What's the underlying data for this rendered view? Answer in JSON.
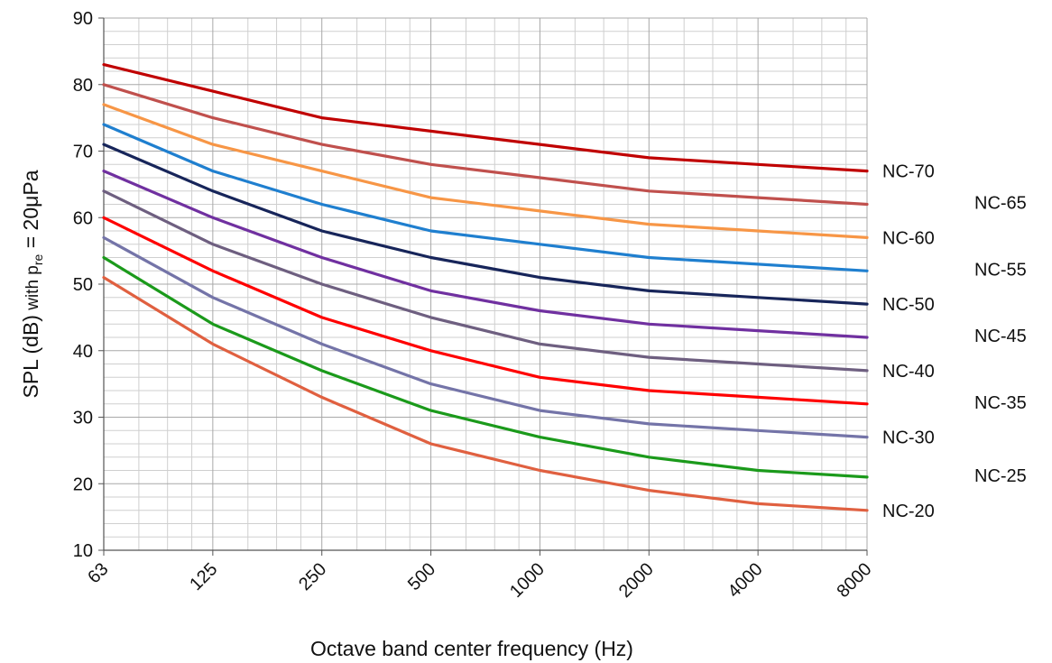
{
  "chart_data": {
    "type": "line",
    "title": "",
    "xlabel": "Octave band center frequency (Hz)",
    "ylabel": {
      "prefix": "SPL (dB)",
      "with": " with p",
      "sub": "re",
      "suffix": " = 20μPa"
    },
    "x_scale": "log2",
    "categories": [
      "63",
      "125",
      "250",
      "500",
      "1000",
      "2000",
      "4000",
      "8000"
    ],
    "ylim": [
      10,
      90
    ],
    "y_ticks": [
      10,
      20,
      30,
      40,
      50,
      60,
      70,
      80,
      90
    ],
    "grid": true,
    "series": [
      {
        "name": "NC-70",
        "color": "#c00000",
        "values": [
          83,
          79,
          75,
          73,
          71,
          69,
          68,
          67
        ]
      },
      {
        "name": "NC-65",
        "color": "#c0504d",
        "values": [
          80,
          75,
          71,
          68,
          66,
          64,
          63,
          62
        ]
      },
      {
        "name": "NC-60",
        "color": "#f79646",
        "values": [
          77,
          71,
          67,
          63,
          61,
          59,
          58,
          57
        ]
      },
      {
        "name": "NC-55",
        "color": "#1f7fcf",
        "values": [
          74,
          67,
          62,
          58,
          56,
          54,
          53,
          52
        ]
      },
      {
        "name": "NC-50",
        "color": "#17255a",
        "values": [
          71,
          64,
          58,
          54,
          51,
          49,
          48,
          47
        ]
      },
      {
        "name": "NC-45",
        "color": "#7030a0",
        "values": [
          67,
          60,
          54,
          49,
          46,
          44,
          43,
          42
        ]
      },
      {
        "name": "NC-40",
        "color": "#6e5f80",
        "values": [
          64,
          56,
          50,
          45,
          41,
          39,
          38,
          37
        ]
      },
      {
        "name": "NC-35",
        "color": "#ff0000",
        "values": [
          60,
          52,
          45,
          40,
          36,
          34,
          33,
          32
        ]
      },
      {
        "name": "NC-30",
        "color": "#7474a8",
        "values": [
          57,
          48,
          41,
          35,
          31,
          29,
          28,
          27
        ]
      },
      {
        "name": "NC-25",
        "color": "#1b9a1b",
        "values": [
          54,
          44,
          37,
          31,
          27,
          24,
          22,
          21
        ]
      },
      {
        "name": "NC-20",
        "color": "#e06040",
        "values": [
          51,
          41,
          33,
          26,
          22,
          19,
          17,
          16
        ]
      }
    ]
  }
}
